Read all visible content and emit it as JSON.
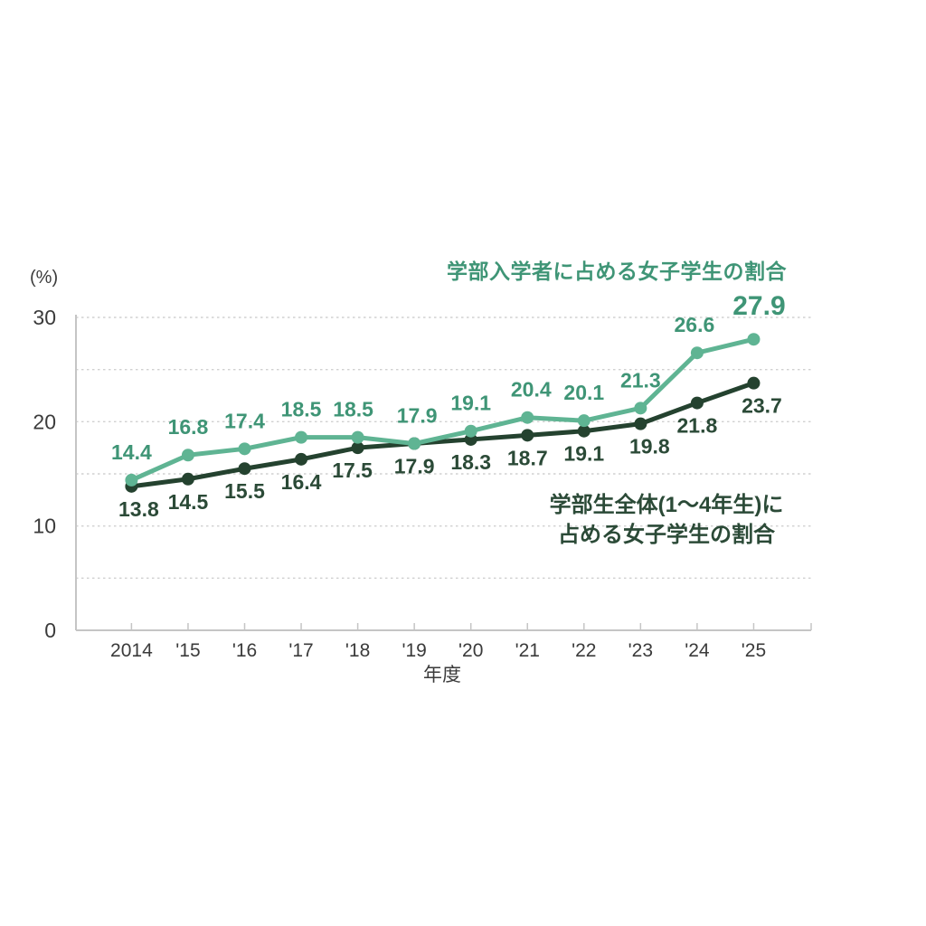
{
  "chart_data": {
    "type": "line",
    "unit": "(%)",
    "xlabel": "年度",
    "ylim": [
      0,
      30
    ],
    "yticks": [
      0,
      10,
      20,
      30
    ],
    "gridline_step": 5,
    "grid_style": "dashed-horizontal",
    "legend_position": "inline-annotations",
    "categories": [
      "2014",
      "'15",
      "'16",
      "'17",
      "'18",
      "'19",
      "'20",
      "'21",
      "'22",
      "'23",
      "'24",
      "'25"
    ],
    "series": [
      {
        "name": "学部入学者に占める女子学生の割合",
        "color": "#5fb493",
        "label_color": "#3f9576",
        "values": [
          14.4,
          16.8,
          17.4,
          18.5,
          18.5,
          17.9,
          19.1,
          20.4,
          20.1,
          21.3,
          26.6,
          27.9
        ]
      },
      {
        "name": "学部生全体(1〜4年生)に占める女子学生の割合",
        "color": "#24422f",
        "label_color": "#2b4a37",
        "values": [
          13.8,
          14.5,
          15.5,
          16.4,
          17.5,
          17.9,
          18.3,
          18.7,
          19.1,
          19.8,
          21.8,
          23.7
        ]
      }
    ]
  },
  "labels": {
    "unit": "(%)",
    "series1_title": "学部入学者に占める女子学生の割合",
    "series2_line1": "学部生全体(1〜4年生)に",
    "series2_line2": "占める女子学生の割合",
    "xlabel": "年度"
  },
  "colors": {
    "background": "#ffffff",
    "series1": "#5fb493",
    "series1_text": "#3f9576",
    "series2": "#24422f",
    "series2_text": "#2b4a37",
    "axis": "#c5c5c5",
    "grid": "#d0d0d0",
    "tick_text": "#3b3b3b"
  }
}
